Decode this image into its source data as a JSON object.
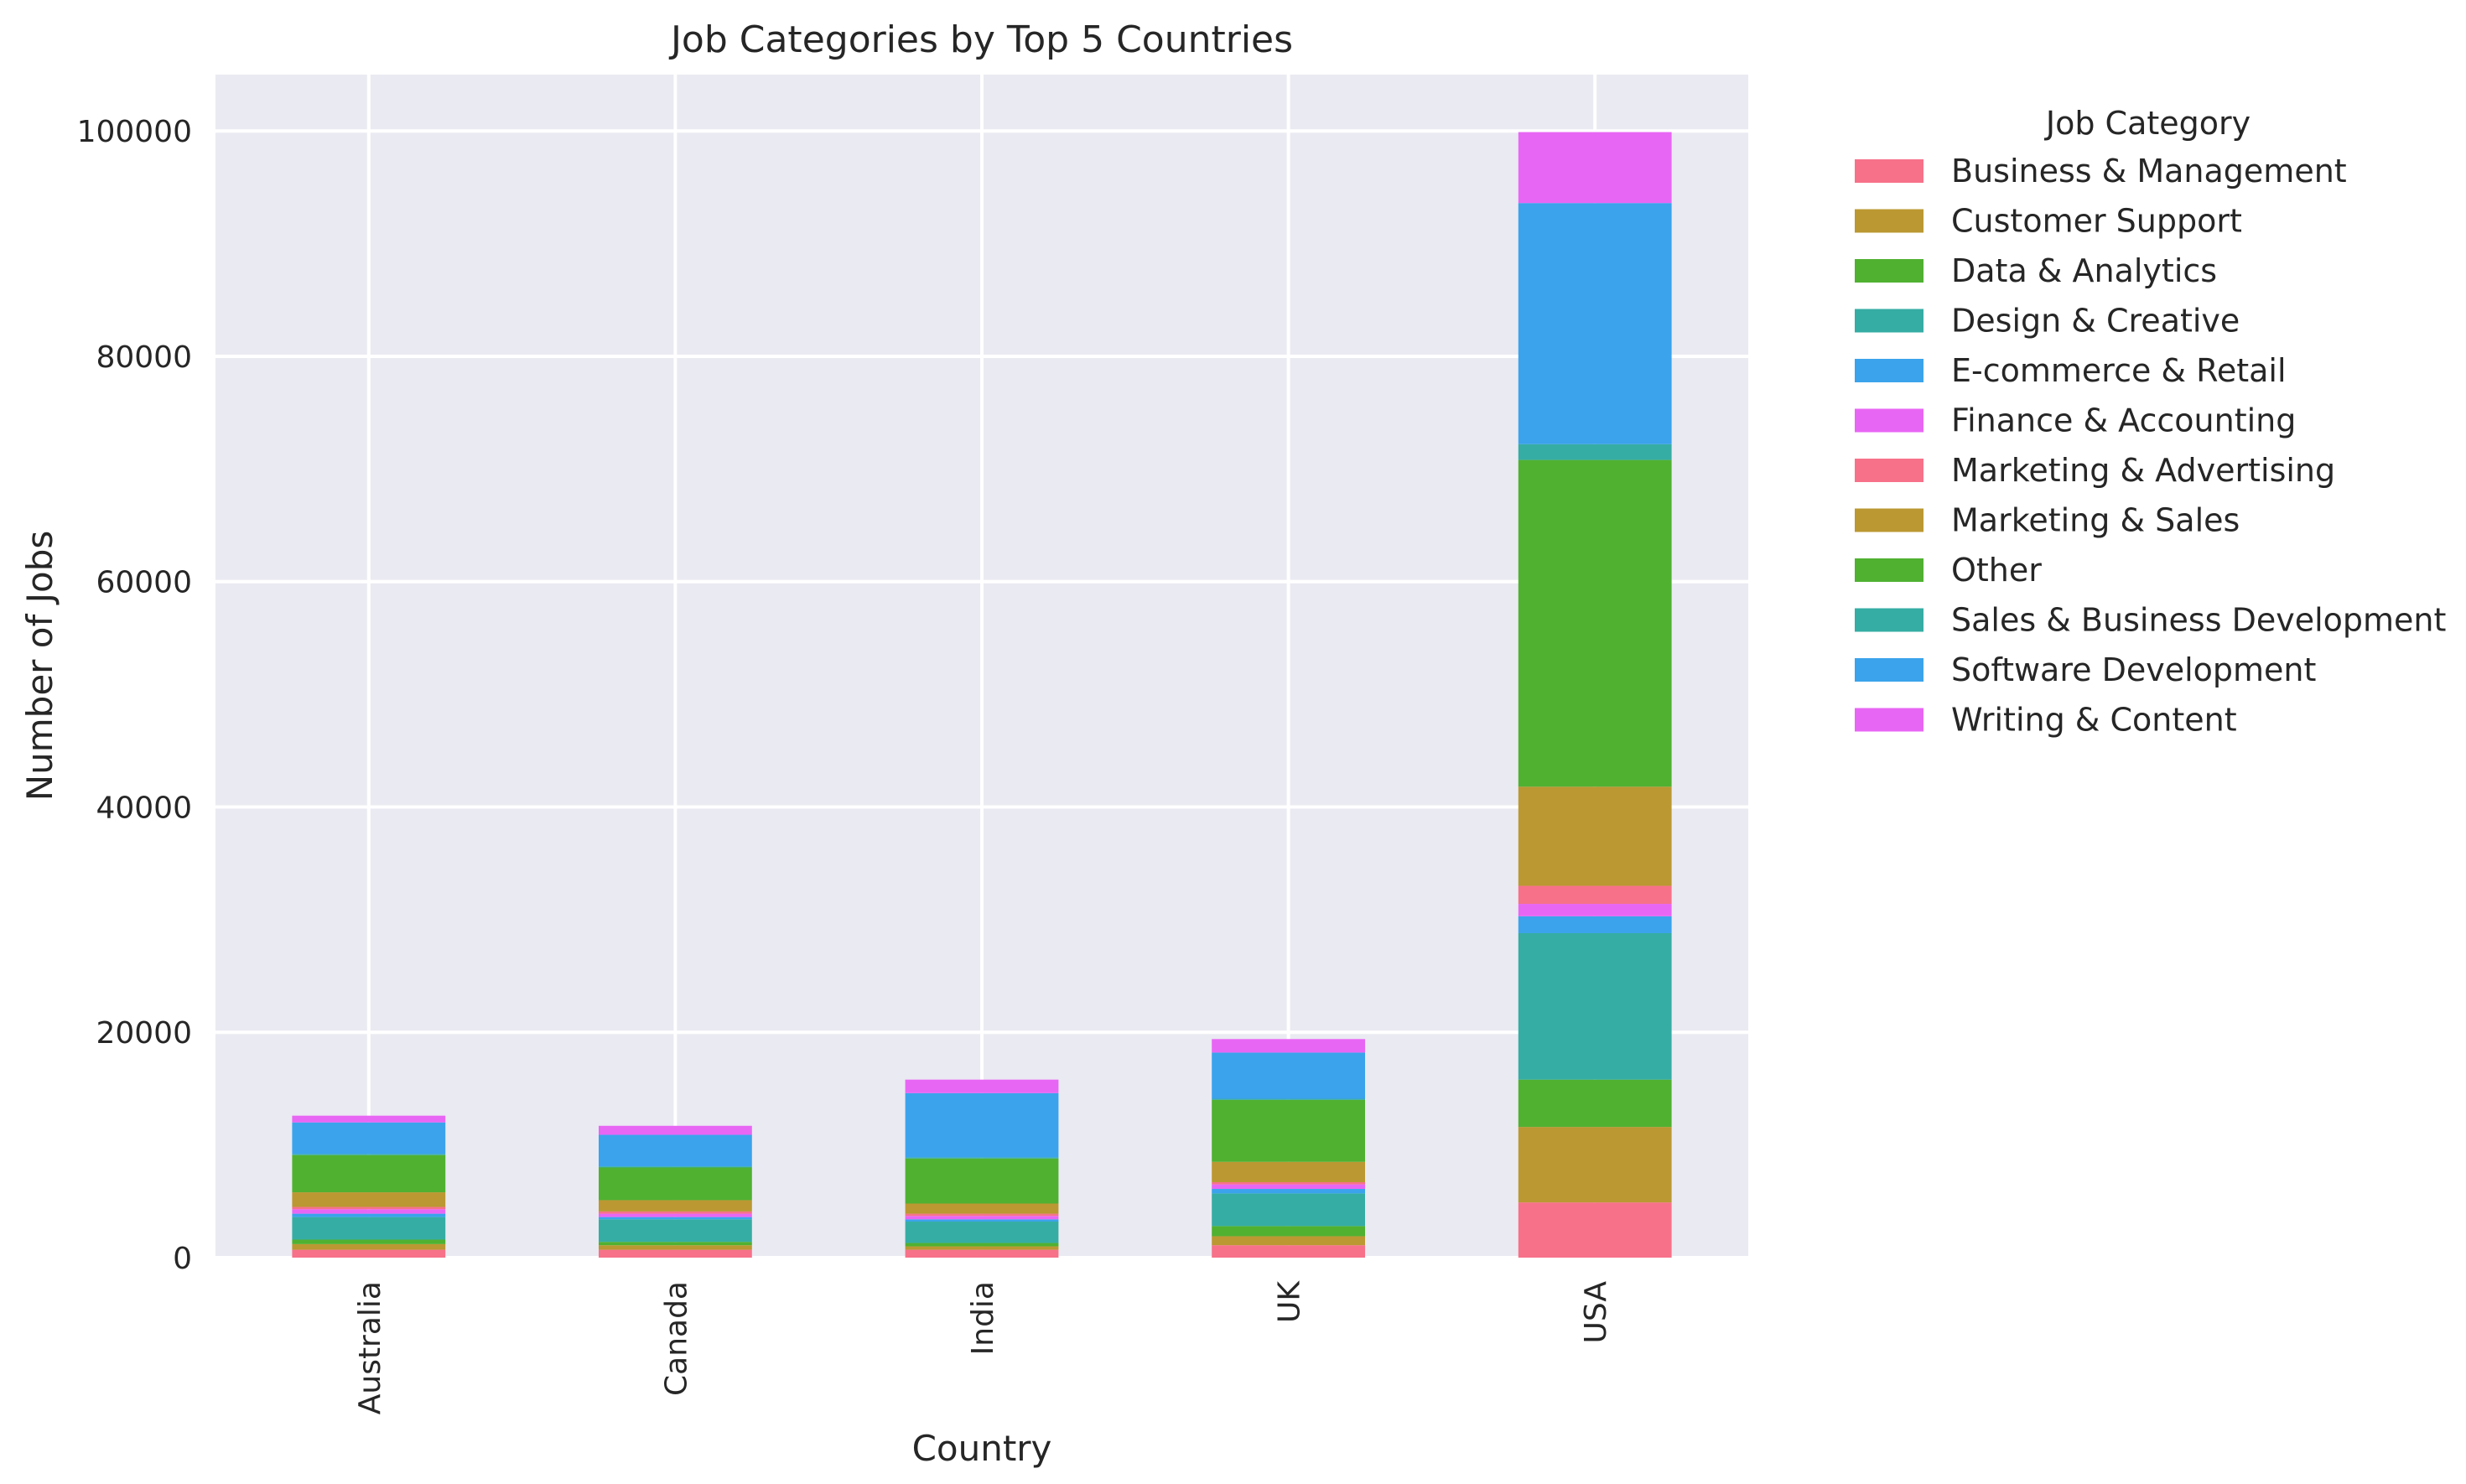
{
  "chart_data": {
    "type": "bar",
    "stacked": true,
    "title": "Job Categories by Top 5 Countries",
    "xlabel": "Country",
    "ylabel": "Number of Jobs",
    "ylim": [
      0,
      105000
    ],
    "yticks": [
      0,
      20000,
      40000,
      60000,
      80000,
      100000
    ],
    "grid": true,
    "legend_title": "Job Category",
    "legend_position": "outside-right",
    "categories": [
      "Australia",
      "Canada",
      "India",
      "UK",
      "USA"
    ],
    "series": [
      {
        "name": "Business & Management",
        "color": "#f77189",
        "values": [
          700,
          700,
          700,
          1100,
          4900
        ]
      },
      {
        "name": "Customer Support",
        "color": "#bb9832",
        "values": [
          500,
          400,
          300,
          800,
          6700
        ]
      },
      {
        "name": "Data & Analytics",
        "color": "#50b131",
        "values": [
          400,
          300,
          300,
          900,
          4200
        ]
      },
      {
        "name": "Design & Creative",
        "color": "#36ada4",
        "values": [
          2000,
          2000,
          1900,
          2900,
          13000
        ]
      },
      {
        "name": "E-commerce & Retail",
        "color": "#3ba3ec",
        "values": [
          300,
          200,
          200,
          400,
          1500
        ]
      },
      {
        "name": "Finance & Accounting",
        "color": "#e866f4",
        "values": [
          400,
          300,
          300,
          400,
          1100
        ]
      },
      {
        "name": "Marketing & Advertising",
        "color": "#f77189",
        "values": [
          200,
          200,
          200,
          200,
          1600
        ]
      },
      {
        "name": "Marketing & Sales",
        "color": "#bb9832",
        "values": [
          1300,
          1000,
          900,
          1800,
          8800
        ]
      },
      {
        "name": "Other",
        "color": "#50b131",
        "values": [
          3300,
          2900,
          4000,
          5500,
          29000
        ]
      },
      {
        "name": "Sales & Business Development",
        "color": "#36ada4",
        "values": [
          100,
          100,
          100,
          100,
          1400
        ]
      },
      {
        "name": "Software Development",
        "color": "#3ba3ec",
        "values": [
          2800,
          2800,
          5700,
          4100,
          21400
        ]
      },
      {
        "name": "Writing & Content",
        "color": "#e866f4",
        "values": [
          600,
          800,
          1200,
          1200,
          6300
        ]
      }
    ]
  }
}
